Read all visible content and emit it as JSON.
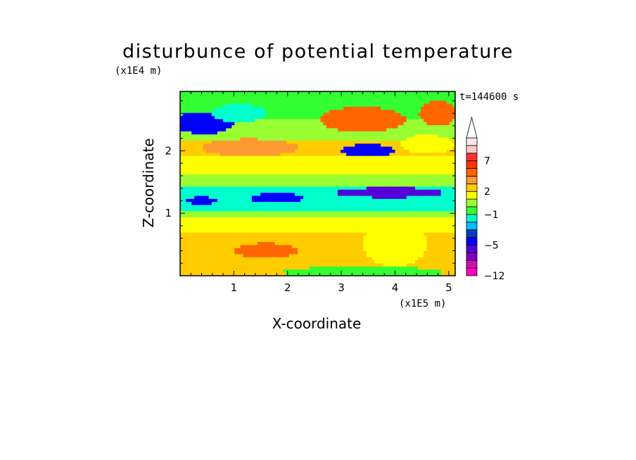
{
  "chart_data": {
    "type": "heatmap",
    "title": "disturbunce of potential temperature",
    "xlabel": "X-coordinate",
    "ylabel": "Z-coordinate",
    "x_scale_label": "(x1E5 m)",
    "y_scale_label": "(x1E4 m)",
    "time_label": "t=144600 s",
    "xlim": [
      0,
      5.12
    ],
    "ylim": [
      0,
      2.95
    ],
    "x_ticks": [
      "1",
      "2",
      "3",
      "4",
      "5"
    ],
    "y_ticks": [
      "1",
      "2"
    ],
    "colorbar": {
      "levels": [
        -12,
        -10,
        -8,
        -6,
        -5,
        -4,
        -3,
        -2,
        -1,
        0,
        1,
        2,
        3,
        4,
        5,
        7,
        9,
        11
      ],
      "tick_labels": [
        "-12",
        "-5",
        "-1",
        "2",
        "7"
      ],
      "colors": [
        "#ff00bf",
        "#d10fb0",
        "#8000bf",
        "#5500d9",
        "#0000ff",
        "#003cbf",
        "#00bfff",
        "#00ffcc",
        "#33ff33",
        "#99ff33",
        "#ffff00",
        "#ffcc00",
        "#ff9933",
        "#ff6600",
        "#ff3300",
        "#ff3333",
        "#ffcccc",
        "#ffe6e6"
      ],
      "extend": "max"
    },
    "field": {
      "background_value": 0.5,
      "note": "approximate horizontal bands of potential temperature disturbance (x in 1E5 m, z in 1E4 m)",
      "bands": [
        {
          "x": [
            0,
            5.12
          ],
          "z": [
            0.0,
            0.12
          ],
          "value": 2.5
        },
        {
          "x": [
            0,
            5.12
          ],
          "z": [
            0.12,
            0.35
          ],
          "value": 2.8
        },
        {
          "x": [
            0,
            5.12
          ],
          "z": [
            0.35,
            0.7
          ],
          "value": 2.6
        },
        {
          "x": [
            0,
            5.12
          ],
          "z": [
            0.7,
            0.92
          ],
          "value": 1.2
        },
        {
          "x": [
            0,
            5.12
          ],
          "z": [
            0.92,
            1.05
          ],
          "value": 0.5
        },
        {
          "x": [
            0,
            5.12
          ],
          "z": [
            1.05,
            1.45
          ],
          "value": -1.2
        },
        {
          "x": [
            0,
            5.12
          ],
          "z": [
            1.45,
            1.6
          ],
          "value": 0.3
        },
        {
          "x": [
            0,
            5.12
          ],
          "z": [
            1.6,
            1.9
          ],
          "value": 1.0
        },
        {
          "x": [
            0,
            5.12
          ],
          "z": [
            1.9,
            2.15
          ],
          "value": 2.5
        },
        {
          "x": [
            0,
            5.12
          ],
          "z": [
            2.15,
            2.5
          ],
          "value": 0.2
        },
        {
          "x": [
            0,
            5.12
          ],
          "z": [
            2.5,
            2.95
          ],
          "value": -0.5
        }
      ],
      "blobs": [
        {
          "x": 0.45,
          "z": 2.45,
          "rx": 0.55,
          "rz": 0.18,
          "value": -5
        },
        {
          "x": 1.1,
          "z": 2.6,
          "rx": 0.5,
          "rz": 0.15,
          "value": -2
        },
        {
          "x": 1.3,
          "z": 2.05,
          "rx": 0.9,
          "rz": 0.14,
          "value": 3.5
        },
        {
          "x": 0.4,
          "z": 1.2,
          "rx": 0.3,
          "rz": 0.06,
          "value": -5
        },
        {
          "x": 1.8,
          "z": 1.24,
          "rx": 0.5,
          "rz": 0.08,
          "value": -5
        },
        {
          "x": 3.9,
          "z": 1.33,
          "rx": 1.0,
          "rz": 0.08,
          "value": -6
        },
        {
          "x": 3.5,
          "z": 2.0,
          "rx": 0.5,
          "rz": 0.1,
          "value": -5
        },
        {
          "x": 3.4,
          "z": 2.5,
          "rx": 0.8,
          "rz": 0.2,
          "value": 4
        },
        {
          "x": 4.8,
          "z": 2.6,
          "rx": 0.35,
          "rz": 0.2,
          "value": 4.5
        },
        {
          "x": 4.6,
          "z": 2.1,
          "rx": 0.5,
          "rz": 0.15,
          "value": 1
        },
        {
          "x": 1.6,
          "z": 0.4,
          "rx": 0.6,
          "rz": 0.12,
          "value": 4
        },
        {
          "x": 3.4,
          "z": 0.05,
          "rx": 1.5,
          "rz": 0.1,
          "value": -0.5
        },
        {
          "x": 4.0,
          "z": 0.5,
          "rx": 0.6,
          "rz": 0.35,
          "value": 1.5
        }
      ]
    }
  }
}
